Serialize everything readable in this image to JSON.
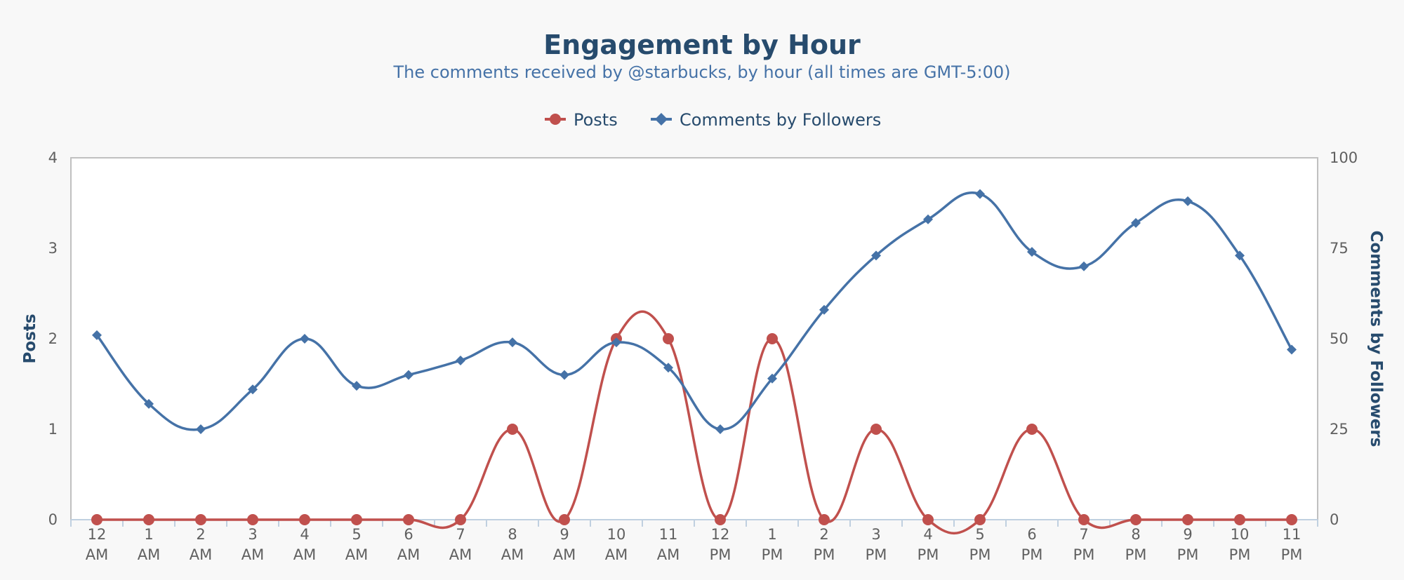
{
  "chart_data": {
    "type": "line",
    "title": "Engagement by Hour",
    "subtitle": "The comments received by @starbucks, by hour (all times are GMT-5:00)",
    "categories": [
      [
        "12",
        "AM"
      ],
      [
        "1",
        "AM"
      ],
      [
        "2",
        "AM"
      ],
      [
        "3",
        "AM"
      ],
      [
        "4",
        "AM"
      ],
      [
        "5",
        "AM"
      ],
      [
        "6",
        "AM"
      ],
      [
        "7",
        "AM"
      ],
      [
        "8",
        "AM"
      ],
      [
        "9",
        "AM"
      ],
      [
        "10",
        "AM"
      ],
      [
        "11",
        "AM"
      ],
      [
        "12",
        "PM"
      ],
      [
        "1",
        "PM"
      ],
      [
        "2",
        "PM"
      ],
      [
        "3",
        "PM"
      ],
      [
        "4",
        "PM"
      ],
      [
        "5",
        "PM"
      ],
      [
        "6",
        "PM"
      ],
      [
        "7",
        "PM"
      ],
      [
        "8",
        "PM"
      ],
      [
        "9",
        "PM"
      ],
      [
        "10",
        "PM"
      ],
      [
        "11",
        "PM"
      ]
    ],
    "y_left": {
      "label": "Posts",
      "min": 0,
      "max": 4,
      "ticks": [
        "0",
        "1",
        "2",
        "3",
        "4"
      ]
    },
    "y_right": {
      "label": "Comments by Followers",
      "min": 0,
      "max": 100,
      "ticks": [
        "0",
        "25",
        "50",
        "75",
        "100"
      ]
    },
    "legend_position": "top-center",
    "grid": false,
    "series": [
      {
        "name": "Posts",
        "axis": "left",
        "marker": "circle",
        "color": "#c0504d",
        "values": [
          0,
          0,
          0,
          0,
          0,
          0,
          0,
          0,
          1,
          0,
          2,
          2,
          0,
          2,
          0,
          1,
          0,
          0,
          1,
          0,
          0,
          0,
          0,
          0
        ]
      },
      {
        "name": "Comments by Followers",
        "axis": "right",
        "marker": "diamond",
        "color": "#4572a7",
        "values": [
          51,
          32,
          25,
          36,
          50,
          37,
          40,
          44,
          49,
          40,
          49,
          42,
          25,
          39,
          58,
          73,
          83,
          90,
          74,
          70,
          82,
          88,
          73,
          47
        ]
      }
    ]
  }
}
